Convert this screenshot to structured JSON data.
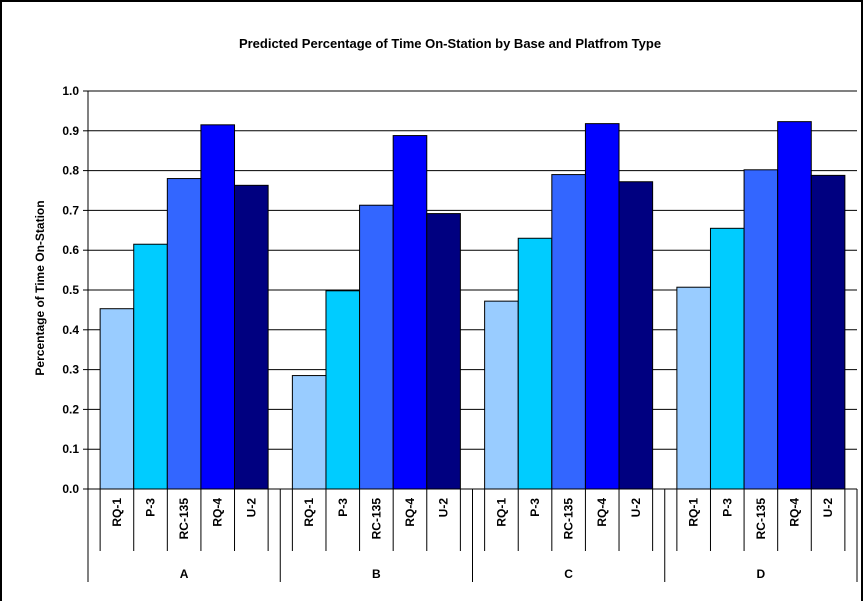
{
  "chart_data": {
    "type": "bar",
    "title": "Predicted Percentage of Time On-Station by Base and Platfrom Type",
    "xlabel": "",
    "ylabel": "Percentage of Time On-Station",
    "ylim": [
      0,
      1.0
    ],
    "yticks": [
      "0.0",
      "0.1",
      "0.2",
      "0.3",
      "0.4",
      "0.5",
      "0.6",
      "0.7",
      "0.8",
      "0.9",
      "1.0"
    ],
    "grid": true,
    "groups": [
      "A",
      "B",
      "C",
      "D"
    ],
    "categories": [
      "RQ-1",
      "P-3",
      "RC-135",
      "RQ-4",
      "U-2"
    ],
    "colors": [
      "#99ccff",
      "#00ccff",
      "#3366ff",
      "#0000ff",
      "#000080"
    ],
    "values": [
      [
        0.453,
        0.615,
        0.78,
        0.915,
        0.763
      ],
      [
        0.285,
        0.498,
        0.713,
        0.888,
        0.692
      ],
      [
        0.472,
        0.63,
        0.79,
        0.918,
        0.772
      ],
      [
        0.507,
        0.655,
        0.802,
        0.923,
        0.788
      ]
    ]
  }
}
